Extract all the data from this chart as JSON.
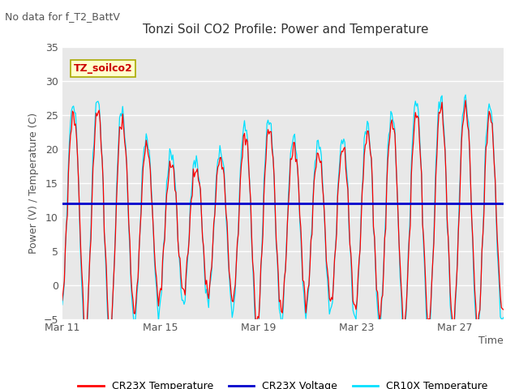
{
  "title": "Tonzi Soil CO2 Profile: Power and Temperature",
  "subtitle": "No data for f_T2_BattV",
  "ylabel": "Power (V) / Temperature (C)",
  "xlabel": "Time",
  "ylim": [
    -5,
    35
  ],
  "yticks": [
    -5,
    0,
    5,
    10,
    15,
    20,
    25,
    30,
    35
  ],
  "xtick_labels": [
    "Mar 11",
    "Mar 15",
    "Mar 19",
    "Mar 23",
    "Mar 27"
  ],
  "xtick_positions": [
    0,
    4,
    8,
    12,
    16
  ],
  "xlim": [
    0,
    18
  ],
  "bg_color": "#e8e8e8",
  "cr23x_color": "#ff0000",
  "cr10x_color": "#00e0ff",
  "voltage_color": "#0000cc",
  "voltage_y": 12.0,
  "legend_entries": [
    "CR23X Temperature",
    "CR23X Voltage",
    "CR10X Temperature"
  ],
  "annotation_text": "TZ_soilco2",
  "annotation_face": "#ffffcc",
  "annotation_edge": "#aaaa00",
  "annotation_text_color": "#cc0000",
  "title_fontsize": 11,
  "label_fontsize": 9,
  "tick_color": "#555555",
  "label_color": "#555555",
  "grid_color": "#ffffff",
  "fig_width": 6.4,
  "fig_height": 4.8,
  "fig_dpi": 100
}
